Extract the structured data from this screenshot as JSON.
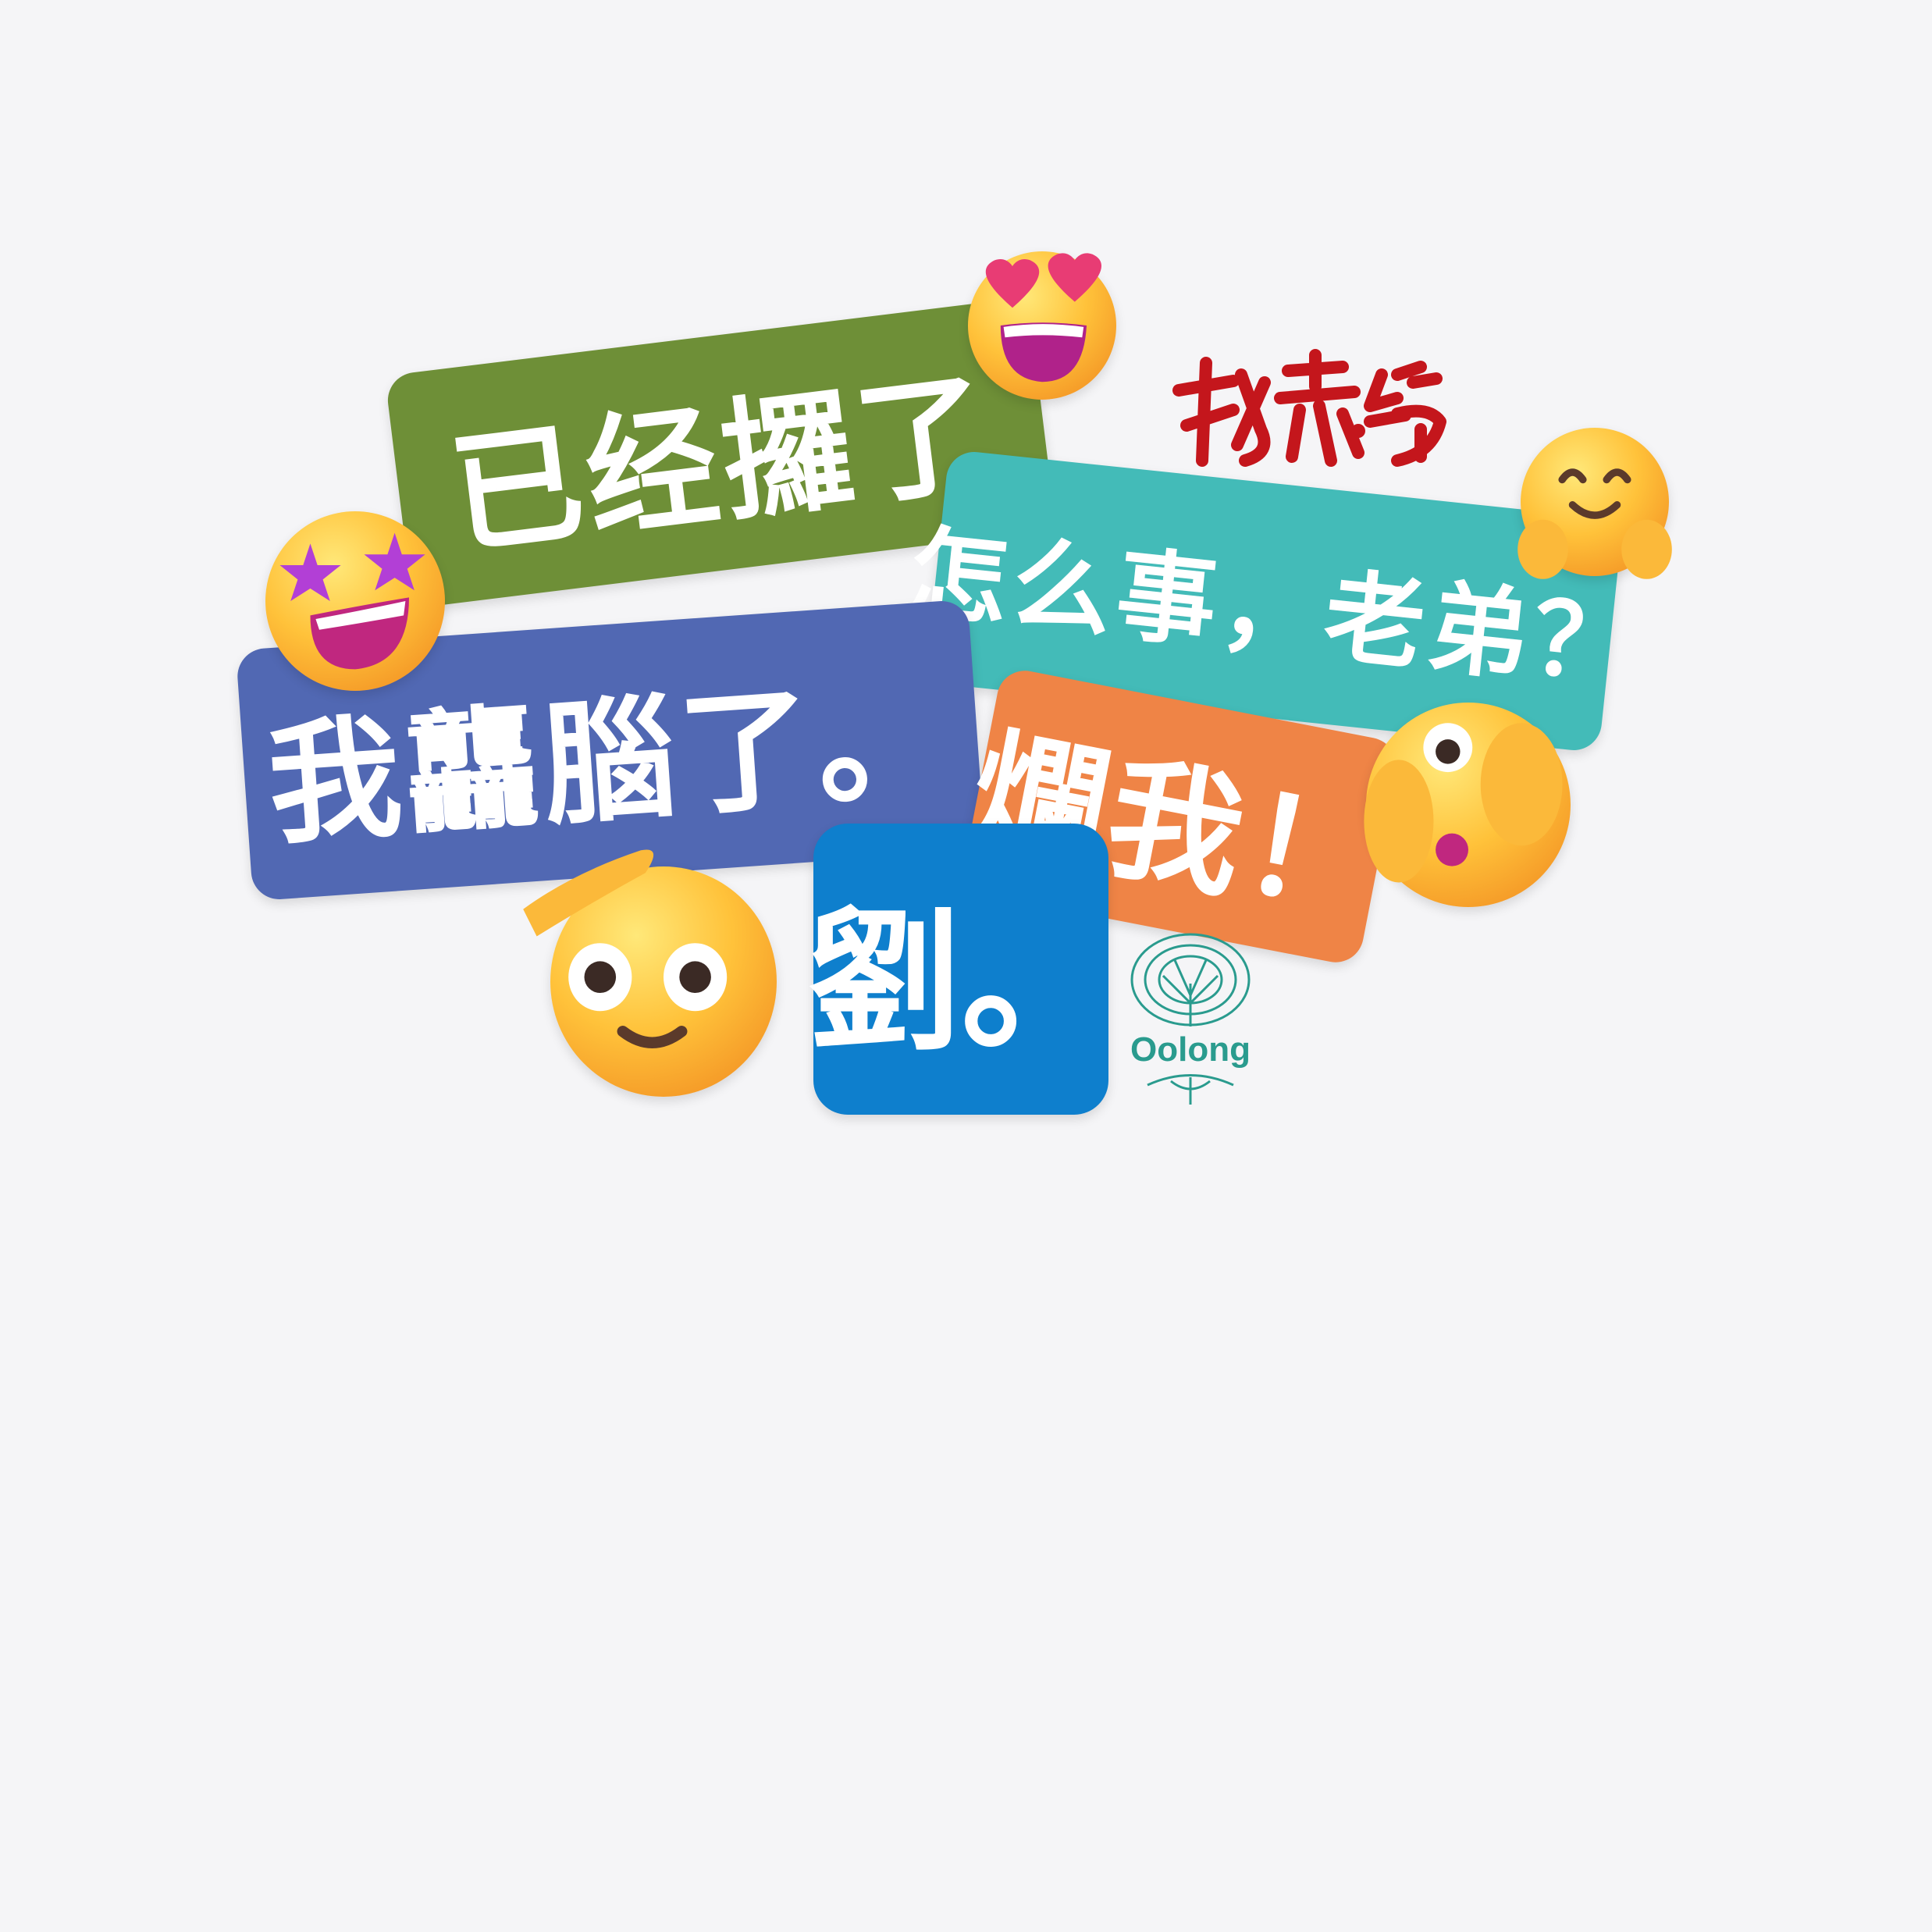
{
  "stickers": {
    "green": "已经攞了",
    "teal": "怎么事，老弟？",
    "blue": "我龘腦了。",
    "orange": "爛我！",
    "square": "劉。"
  },
  "logo": {
    "signature_text": "杖霧鉄",
    "brand": "Oolong"
  },
  "emojis": [
    "star-struck-icon",
    "heart-eyes-icon",
    "hugging-face-icon",
    "saluting-face-icon",
    "face-with-peeking-eye-icon"
  ],
  "colors": {
    "background": "#f5f5f7",
    "green": "#6e8f37",
    "teal": "#43bbb8",
    "blue": "#5168b3",
    "orange": "#ef8446",
    "square": "#0e7fcd",
    "signature": "#c4161c",
    "oolong": "#2a9b8e"
  }
}
